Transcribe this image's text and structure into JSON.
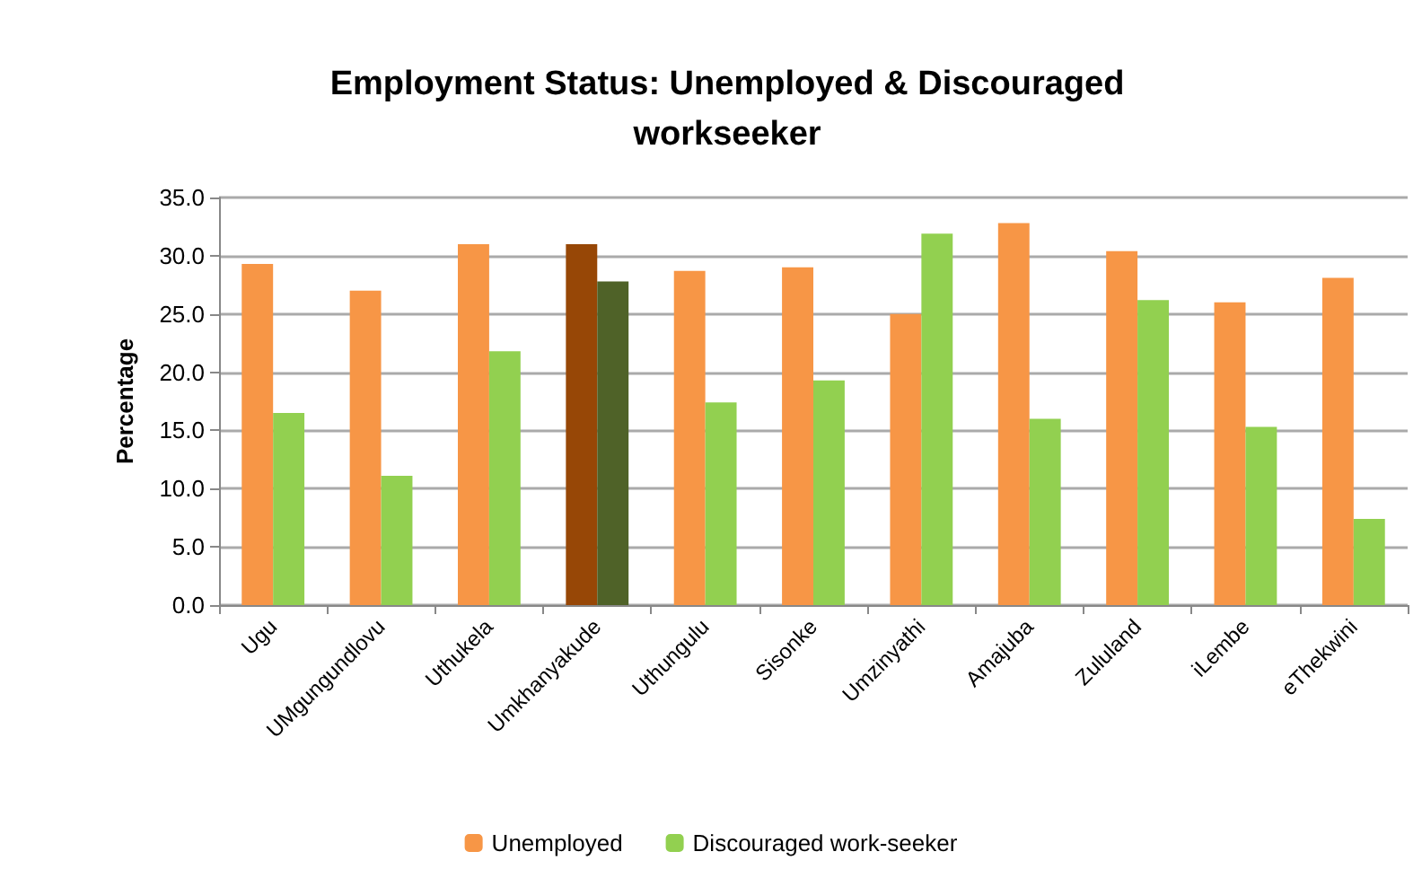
{
  "chart_data": {
    "type": "bar",
    "title": "Employment Status: Unemployed & Discouraged\nworkseeker",
    "ylabel": "Percentage",
    "categories": [
      "Ugu",
      "UMgungundlovu",
      "Uthukela",
      "Umkhanyakude",
      "Uthungulu",
      "Sisonke",
      "Umzinyathi",
      "Amajuba",
      "Zululand",
      "iLembe",
      "eThekwini"
    ],
    "series": [
      {
        "name": "Unemployed",
        "color": "#f79646",
        "colors": [
          "#f79646",
          "#f79646",
          "#f79646",
          "#974706",
          "#f79646",
          "#f79646",
          "#f79646",
          "#f79646",
          "#f79646",
          "#f79646",
          "#f79646"
        ],
        "values": [
          29.3,
          27.0,
          31.0,
          31.0,
          28.7,
          29.0,
          25.0,
          32.8,
          30.4,
          26.0,
          28.1
        ]
      },
      {
        "name": "Discouraged work-seeker",
        "color": "#92d050",
        "colors": [
          "#92d050",
          "#92d050",
          "#92d050",
          "#4f6228",
          "#92d050",
          "#92d050",
          "#92d050",
          "#92d050",
          "#92d050",
          "#92d050",
          "#92d050"
        ],
        "values": [
          16.5,
          11.1,
          21.8,
          27.8,
          17.4,
          19.3,
          31.9,
          16.0,
          26.2,
          15.3,
          7.4
        ]
      }
    ],
    "ylim": [
      0,
      35
    ],
    "yticks": [
      {
        "value": 0,
        "label": "0.0"
      },
      {
        "value": 5,
        "label": "5.0"
      },
      {
        "value": 10,
        "label": "10.0"
      },
      {
        "value": 15,
        "label": "15.0"
      },
      {
        "value": 20,
        "label": "20.0"
      },
      {
        "value": 25,
        "label": "25.0"
      },
      {
        "value": 30,
        "label": "30.0"
      },
      {
        "value": 35,
        "label": "35.0"
      }
    ],
    "grid": "y",
    "legend": "bottom"
  }
}
